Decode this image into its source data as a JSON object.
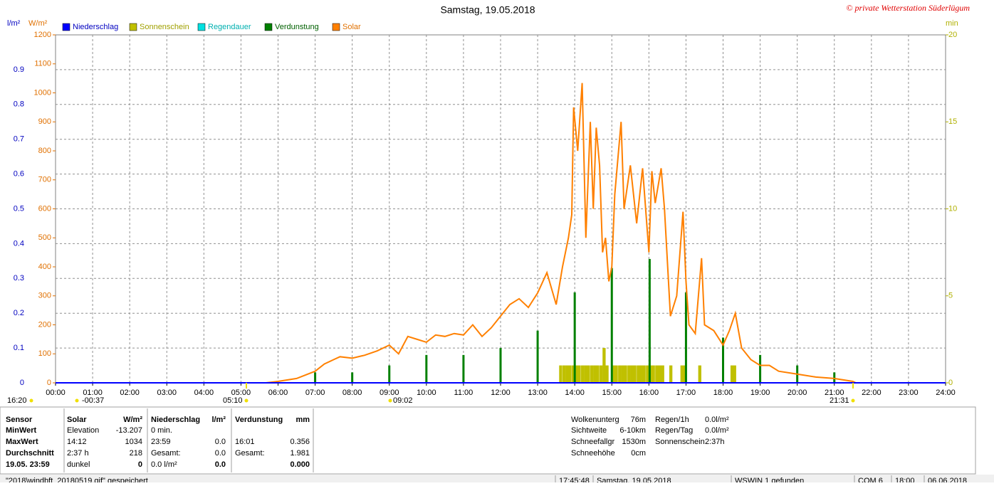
{
  "chart_data": {
    "type": "line",
    "title": "Samstag, 19.05.2018",
    "copyright": "© private Wetterstation Süderlügum",
    "ylabel": "l/m²",
    "y2label": "W/m²",
    "y3label": "min",
    "xlim": [
      0,
      24
    ],
    "xticks": [
      {
        "value": 0,
        "label": "00:00"
      },
      {
        "value": 1,
        "label": "01:00"
      },
      {
        "value": 2,
        "label": "02:00"
      },
      {
        "value": 3,
        "label": "03:00"
      },
      {
        "value": 4,
        "label": "04:00"
      },
      {
        "value": 5,
        "label": "05:00"
      },
      {
        "value": 6,
        "label": "06:00"
      },
      {
        "value": 7,
        "label": "07:00"
      },
      {
        "value": 8,
        "label": "08:00"
      },
      {
        "value": 9,
        "label": "09:00"
      },
      {
        "value": 10,
        "label": "10:00"
      },
      {
        "value": 11,
        "label": "11:00"
      },
      {
        "value": 12,
        "label": "12:00"
      },
      {
        "value": 13,
        "label": "13:00"
      },
      {
        "value": 14,
        "label": "14:00"
      },
      {
        "value": 15,
        "label": "15:00"
      },
      {
        "value": 16,
        "label": "16:00"
      },
      {
        "value": 17,
        "label": "17:00"
      },
      {
        "value": 18,
        "label": "18:00"
      },
      {
        "value": 19,
        "label": "19:00"
      },
      {
        "value": 20,
        "label": "20:00"
      },
      {
        "value": 21,
        "label": "21:00"
      },
      {
        "value": 22,
        "label": "22:00"
      },
      {
        "value": 23,
        "label": "23:00"
      },
      {
        "value": 24,
        "label": "24:00"
      }
    ],
    "ylim": [
      0,
      1
    ],
    "yticks": [
      0,
      0.1,
      0.2,
      0.3,
      0.4,
      0.5,
      0.6,
      0.7,
      0.8,
      0.9
    ],
    "y2lim": [
      0,
      1200
    ],
    "y2ticks": [
      0,
      100,
      200,
      300,
      400,
      500,
      600,
      700,
      800,
      900,
      1000,
      1100,
      1200
    ],
    "y3lim": [
      0,
      20
    ],
    "y3ticks": [
      0,
      5,
      10,
      15,
      20
    ],
    "grid": true,
    "annotations": [
      "16:20",
      "-00:37",
      "05:10",
      "09:02",
      "21:31"
    ],
    "series": [
      {
        "name": "Niederschlag",
        "color": "#0000ff",
        "axis": "y",
        "kind": "line",
        "x": [
          0,
          24
        ],
        "values": [
          0,
          0
        ]
      },
      {
        "name": "Sonnenschein",
        "color": "#c0c000",
        "axis": "y3",
        "kind": "bar",
        "x": [
          13.58,
          13.67,
          13.75,
          13.83,
          13.92,
          14.0,
          14.08,
          14.17,
          14.25,
          14.33,
          14.42,
          14.5,
          14.58,
          14.67,
          14.75,
          14.83,
          15.0,
          15.08,
          15.17,
          15.25,
          15.33,
          15.42,
          15.5,
          15.58,
          15.67,
          15.75,
          15.83,
          15.92,
          16.0,
          16.08,
          16.17,
          16.25,
          16.33,
          16.55,
          16.85,
          16.92,
          17.33,
          18.2,
          18.27
        ],
        "values": [
          1,
          1,
          1,
          1,
          1,
          1,
          1,
          1,
          1,
          1,
          1,
          1,
          1,
          1,
          2,
          1,
          1,
          1,
          1,
          1,
          1,
          1,
          1,
          1,
          1,
          1,
          1,
          1,
          1,
          1,
          1,
          1,
          1,
          1,
          1,
          1,
          1,
          1,
          1
        ]
      },
      {
        "name": "Regendauer",
        "color": "#00e0e0",
        "axis": "y3",
        "kind": "bar",
        "x": [],
        "values": []
      },
      {
        "name": "Verdunstung",
        "color": "#008000",
        "axis": "y",
        "kind": "bar",
        "x": [
          7,
          8,
          9,
          10,
          11,
          12,
          13,
          14,
          15,
          16.02,
          17,
          18,
          19,
          20,
          21
        ],
        "values": [
          0.03,
          0.03,
          0.05,
          0.08,
          0.08,
          0.1,
          0.15,
          0.26,
          0.33,
          0.356,
          0.26,
          0.13,
          0.08,
          0.05,
          0.03
        ]
      },
      {
        "name": "Solar",
        "color": "#ff8000",
        "axis": "y2",
        "kind": "line",
        "x": [
          5.67,
          6.0,
          6.5,
          7.0,
          7.25,
          7.5,
          7.67,
          8.0,
          8.33,
          8.67,
          9.0,
          9.25,
          9.5,
          9.75,
          10.0,
          10.25,
          10.5,
          10.75,
          11.0,
          11.25,
          11.5,
          11.75,
          12.0,
          12.25,
          12.5,
          12.75,
          13.0,
          13.25,
          13.5,
          13.67,
          13.83,
          13.92,
          13.97,
          14.08,
          14.2,
          14.3,
          14.42,
          14.5,
          14.58,
          14.67,
          14.75,
          14.83,
          14.92,
          15.0,
          15.08,
          15.25,
          15.33,
          15.5,
          15.67,
          15.83,
          16.0,
          16.08,
          16.17,
          16.33,
          16.42,
          16.58,
          16.75,
          16.92,
          17.0,
          17.08,
          17.25,
          17.42,
          17.5,
          17.75,
          18.0,
          18.17,
          18.33,
          18.5,
          18.75,
          19.0,
          19.25,
          19.5,
          20.0,
          20.5,
          21.0,
          21.5,
          21.58
        ],
        "values": [
          0,
          5,
          15,
          40,
          65,
          80,
          90,
          85,
          95,
          110,
          130,
          100,
          160,
          150,
          140,
          165,
          160,
          170,
          165,
          200,
          160,
          190,
          230,
          270,
          290,
          260,
          310,
          380,
          270,
          400,
          500,
          580,
          950,
          800,
          1034,
          500,
          900,
          600,
          880,
          750,
          450,
          500,
          350,
          400,
          650,
          900,
          600,
          750,
          550,
          740,
          450,
          730,
          620,
          740,
          600,
          230,
          300,
          590,
          350,
          200,
          170,
          430,
          200,
          180,
          130,
          180,
          240,
          120,
          80,
          60,
          60,
          40,
          30,
          20,
          15,
          5,
          0
        ]
      }
    ]
  },
  "stats": {
    "columns": [
      {
        "rows": [
          {
            "l": "Sensor"
          },
          {
            "l": "MinWert"
          },
          {
            "l": "MaxWert"
          },
          {
            "l": "Durchschnitt"
          },
          {
            "l": "19.05. 23:59"
          }
        ]
      },
      {
        "rows": [
          {
            "l": "Solar",
            "r": "W/m²"
          },
          {
            "l": "Elevation",
            "r": "-13.207"
          },
          {
            "l": "14:12",
            "r": "1034"
          },
          {
            "l": "2:37 h",
            "r": "218"
          },
          {
            "l": "dunkel",
            "r": "0"
          }
        ]
      },
      {
        "rows": [
          {
            "l": "Niederschlag",
            "r": "l/m²"
          },
          {
            "l": "0 min."
          },
          {
            "l": "23:59",
            "r": "0.0"
          },
          {
            "l": "Gesamt:",
            "r": "0.0"
          },
          {
            "l": "0.0 l/m²",
            "r": "0.0"
          }
        ]
      },
      {
        "rows": [
          {
            "l": "Verdunstung",
            "r": "mm"
          },
          {},
          {
            "l": "16:01",
            "r": "0.356"
          },
          {
            "l": "Gesamt:",
            "r": "1.981"
          },
          {
            "r": "0.000"
          }
        ]
      }
    ]
  },
  "info": {
    "left": [
      [
        "Wolkenunterg",
        "76m"
      ],
      [
        "Sichtweite",
        "6-10km"
      ],
      [
        "Schneefallgr",
        "1530m"
      ],
      [
        "Schneehöhe",
        "0cm"
      ]
    ],
    "right": [
      [
        "Regen/1h",
        "0.0l/m²"
      ],
      [
        "Regen/Tag",
        "0.0l/m²"
      ],
      [
        "Sonnenschein",
        "2:37h"
      ]
    ]
  },
  "status_bar": [
    "\"2018\\windbft_20180519.gif\" gespeichert",
    "17:45:48",
    "Samstag, 19.05.2018",
    "WSWIN 1 gefunden",
    "COM 6",
    "18:00",
    "06.06.2018"
  ]
}
